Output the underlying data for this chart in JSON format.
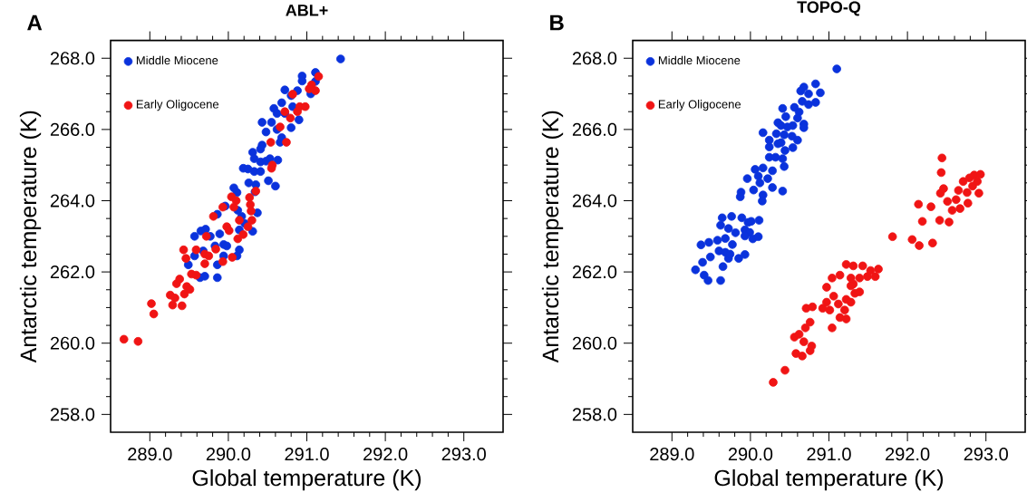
{
  "chart_data": [
    {
      "type": "scatter",
      "title": "ABL+",
      "xlabel": "Global temperature (K)",
      "ylabel": "Antarctic temperature (K)",
      "annotations": [
        "A"
      ],
      "legend": "top left",
      "marker": "circle",
      "xlim": [
        288.5,
        293.5
      ],
      "ylim": [
        257.5,
        268.5
      ],
      "xticks": [
        {
          "value": 289,
          "label": "289.0"
        },
        {
          "value": 290,
          "label": "290.0"
        },
        {
          "value": 291,
          "label": "291.0"
        },
        {
          "value": 292,
          "label": "292.0"
        },
        {
          "value": 293,
          "label": "293.0"
        }
      ],
      "yticks": [
        {
          "value": 258,
          "label": "258.0"
        },
        {
          "value": 260,
          "label": "260.0"
        },
        {
          "value": 262,
          "label": "262.0"
        },
        {
          "value": 264,
          "label": "264.0"
        },
        {
          "value": 266,
          "label": "266.0"
        },
        {
          "value": 268,
          "label": "268.0"
        }
      ],
      "series": [
        {
          "name": "Middle Miocene",
          "color": "#0a32dc",
          "x": [
            291.43,
            291.11,
            291.11,
            290.94,
            290.94,
            290.88,
            290.8,
            291.05,
            290.82,
            290.9,
            290.72,
            290.68,
            290.58,
            290.62,
            290.72,
            290.8,
            290.43,
            290.55,
            290.48,
            290.62,
            290.66,
            290.68,
            290.43,
            290.41,
            290.31,
            290.33,
            290.41,
            290.48,
            290.53,
            290.63,
            290.33,
            290.41,
            290.19,
            290.25,
            290.26,
            290.35,
            290.51,
            290.6,
            290.07,
            290.11,
            290.34,
            290.37,
            289.96,
            289.86,
            290.12,
            290.17,
            290.21,
            290.31,
            290.14,
            289.65,
            289.71,
            289.57,
            289.77,
            289.89,
            289.94,
            289.83,
            289.68,
            289.57,
            290.14,
            290.11,
            289.49,
            289.86,
            289.64,
            289.7,
            289.86,
            289.98,
            289.94
          ],
          "values": [
            267.98,
            267.6,
            267.35,
            267.5,
            267.36,
            267.09,
            266.95,
            267.0,
            266.64,
            266.27,
            267.11,
            266.75,
            266.59,
            266.45,
            266.45,
            266.05,
            266.2,
            266.2,
            265.93,
            266.0,
            265.64,
            265.77,
            265.56,
            265.45,
            265.36,
            265.18,
            265.09,
            265.11,
            265.18,
            265.14,
            264.82,
            264.82,
            264.91,
            264.89,
            264.5,
            264.45,
            264.56,
            264.41,
            264.36,
            264.23,
            264.25,
            263.66,
            263.85,
            263.62,
            263.73,
            263.56,
            263.36,
            263.14,
            263.18,
            263.15,
            263.2,
            263.0,
            263.0,
            263.07,
            262.77,
            262.73,
            262.59,
            262.45,
            262.62,
            262.45,
            262.2,
            262.2,
            261.84,
            261.88,
            261.84,
            262.73,
            262.45
          ]
        },
        {
          "name": "Early Oligocene",
          "color": "#f01414",
          "x": [
            288.67,
            288.85,
            289.02,
            289.05,
            289.26,
            289.29,
            289.32,
            289.34,
            289.38,
            289.41,
            289.44,
            289.47,
            289.51,
            289.43,
            289.46,
            289.53,
            289.59,
            289.59,
            289.67,
            289.7,
            289.7,
            289.72,
            289.75,
            289.81,
            289.84,
            289.93,
            289.93,
            289.98,
            290.01,
            290.04,
            290.05,
            290.07,
            290.1,
            290.12,
            290.14,
            290.19,
            290.25,
            290.27,
            290.28,
            290.29,
            290.3,
            290.35,
            290.54,
            290.55,
            290.56,
            290.66,
            290.74,
            290.72,
            290.79,
            290.82,
            290.88,
            290.91,
            290.98,
            291.06,
            291.11,
            291.15,
            291.03
          ],
          "values": [
            260.11,
            260.05,
            261.11,
            260.82,
            261.35,
            261.07,
            261.27,
            261.67,
            261.8,
            261.05,
            261.38,
            261.59,
            261.51,
            262.62,
            262.38,
            261.94,
            261.91,
            262.62,
            null,
            262.23,
            262.5,
            263.0,
            262.45,
            263.56,
            262.64,
            263.82,
            262.29,
            263.27,
            263.16,
            264.11,
            262.41,
            263.82,
            264.0,
            262.93,
            263.45,
            263.05,
            263.27,
            264.09,
            263.89,
            263.71,
            263.45,
            264.27,
            265.64,
            264.91,
            265.0,
            266.07,
            265.64,
            266.5,
            266.32,
            266.99,
            266.5,
            266.64,
            266.64,
            267.25,
            267.09,
            267.49,
            267.14
          ]
        }
      ]
    },
    {
      "type": "scatter",
      "title": "TOPO-Q",
      "xlabel": "Global temperature (K)",
      "ylabel": "Antarctic temperature (K)",
      "annotations": [
        "B"
      ],
      "legend": "top left",
      "marker": "circle",
      "xlim": [
        288.5,
        293.5
      ],
      "ylim": [
        257.5,
        268.5
      ],
      "xticks": [
        {
          "value": 289,
          "label": "289.0"
        },
        {
          "value": 290,
          "label": "290.0"
        },
        {
          "value": 291,
          "label": "291.0"
        },
        {
          "value": 292,
          "label": "292.0"
        },
        {
          "value": 293,
          "label": "293.0"
        }
      ],
      "yticks": [
        {
          "value": 258,
          "label": "258.0"
        },
        {
          "value": 260,
          "label": "260.0"
        },
        {
          "value": 262,
          "label": "262.0"
        },
        {
          "value": 264,
          "label": "264.0"
        },
        {
          "value": 266,
          "label": "266.0"
        },
        {
          "value": 268,
          "label": "268.0"
        }
      ],
      "series": [
        {
          "name": "Middle Miocene",
          "color": "#0a32dc",
          "x": [
            291.1,
            290.83,
            290.89,
            290.68,
            290.64,
            290.74,
            290.66,
            290.74,
            290.83,
            290.56,
            290.41,
            290.62,
            290.45,
            290.6,
            290.68,
            290.35,
            290.39,
            290.54,
            290.68,
            290.47,
            290.16,
            290.33,
            290.43,
            290.24,
            290.53,
            290.6,
            290.35,
            290.24,
            290.39,
            290.54,
            290.44,
            290.24,
            290.32,
            290.41,
            290.43,
            290.06,
            290.16,
            290.28,
            289.96,
            290.1,
            290.22,
            290.12,
            290.04,
            290.28,
            290.41,
            290.16,
            289.88,
            289.87,
            290.15,
            289.64,
            289.76,
            289.89,
            289.62,
            289.72,
            289.81,
            289.97,
            290.01,
            290.11,
            289.93,
            289.99,
            290.03,
            290.1,
            289.93,
            289.37,
            289.47,
            289.58,
            289.68,
            289.77,
            289.6,
            289.68,
            289.72,
            289.74,
            289.39,
            289.49,
            289.85,
            289.93,
            289.3,
            289.65,
            289.41,
            289.46,
            289.62
          ],
          "values": [
            267.7,
            267.28,
            267.03,
            267.19,
            267.08,
            267.0,
            266.79,
            266.7,
            266.76,
            266.62,
            266.59,
            266.49,
            266.36,
            266.32,
            266.15,
            266.19,
            266.11,
            266.11,
            266.05,
            266.07,
            265.91,
            265.88,
            265.85,
            265.7,
            265.81,
            265.7,
            265.6,
            265.51,
            265.63,
            265.49,
            265.41,
            265.22,
            265.22,
            265.18,
            264.96,
            264.88,
            264.92,
            264.84,
            264.62,
            264.69,
            264.62,
            264.5,
            264.3,
            264.37,
            264.27,
            264.16,
            264.24,
            264.11,
            263.99,
            263.52,
            263.56,
            263.52,
            263.31,
            263.22,
            263.1,
            263.39,
            263.42,
            263.45,
            263.18,
            263.11,
            262.93,
            262.99,
            263.01,
            262.76,
            262.83,
            262.89,
            262.94,
            262.77,
            262.59,
            262.55,
            262.38,
            262.5,
            262.27,
            262.42,
            262.38,
            262.49,
            262.06,
            262.15,
            261.91,
            261.76,
            261.76
          ]
        },
        {
          "name": "Early Oligocene",
          "color": "#f01414",
          "x": [
            290.29,
            290.44,
            290.58,
            290.66,
            290.76,
            290.78,
            290.56,
            290.62,
            290.68,
            290.7,
            290.76,
            290.71,
            290.79,
            290.92,
            291.01,
            291.04,
            290.97,
            291.06,
            291.12,
            291.14,
            291.22,
            291.2,
            291.22,
            291.28,
            290.97,
            291.04,
            291.14,
            291.22,
            291.31,
            291.28,
            291.31,
            291.33,
            291.39,
            291.39,
            291.43,
            291.49,
            291.53,
            291.59,
            291.63,
            291.28,
            291.81,
            292.06,
            292.15,
            292.14,
            292.19,
            292.3,
            292.41,
            292.42,
            292.46,
            292.43,
            292.44,
            292.51,
            292.53,
            292.57,
            292.62,
            292.65,
            292.71,
            292.76,
            292.79,
            292.83,
            292.85,
            292.89,
            292.93,
            292.91,
            292.77,
            292.67,
            292.32
          ],
          "values": [
            258.9,
            259.24,
            259.71,
            259.64,
            259.79,
            259.92,
            260.17,
            260.25,
            260.04,
            260.43,
            260.59,
            260.98,
            261.02,
            260.98,
            260.93,
            260.43,
            261.15,
            261.32,
            261.1,
            260.72,
            260.68,
            260.93,
            261.23,
            261.15,
            261.57,
            261.83,
            261.91,
            262.21,
            262.17,
            261.83,
            261.66,
            261.4,
            261.44,
            261.83,
            262.17,
            261.87,
            262.04,
            261.87,
            262.08,
            261.61,
            262.99,
            262.91,
            262.74,
            263.9,
            263.42,
            263.83,
            263.45,
            264.21,
            264.34,
            264.79,
            265.2,
            263.98,
            263.4,
            263.73,
            264.03,
            264.29,
            264.54,
            264.23,
            264.64,
            264.41,
            264.72,
            264.54,
            264.74,
            264.21,
            263.93,
            263.78,
            262.81
          ]
        }
      ]
    }
  ]
}
